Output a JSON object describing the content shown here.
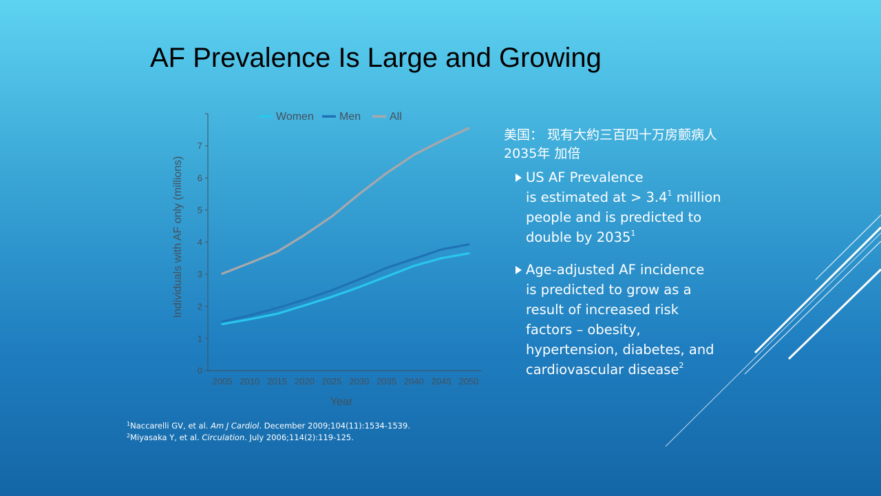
{
  "slide": {
    "title": "AF Prevalence Is Large and Growing"
  },
  "right_panel": {
    "cn_line1": "美国： 现有大約三百四十万房颤病人",
    "cn_line2": "2035年 加倍",
    "bullets": [
      {
        "lines": [
          {
            "text": "US AF Prevalence",
            "sup": ""
          },
          {
            "text": "is estimated at > 3.4",
            "sup": "1",
            "after": " million"
          },
          {
            "text": "people and is predicted to",
            "sup": ""
          },
          {
            "text": "double by 2035",
            "sup": "1"
          }
        ]
      },
      {
        "lines": [
          {
            "text": "Age-adjusted AF incidence",
            "sup": ""
          },
          {
            "text": "is predicted to grow as a",
            "sup": ""
          },
          {
            "text": "result of increased risk",
            "sup": ""
          },
          {
            "text": "factors – obesity,",
            "sup": ""
          },
          {
            "text": "hypertension, diabetes, and",
            "sup": ""
          },
          {
            "text": "cardiovascular disease",
            "sup": "2"
          }
        ]
      }
    ]
  },
  "references": [
    {
      "num": "1",
      "pre": "Naccarelli GV, et al. ",
      "journal": "Am J Cardiol",
      "post": ". December 2009;104(11):1534-1539."
    },
    {
      "num": "2",
      "pre": "Miyasaka Y, et al. ",
      "journal": "Circulation",
      "post": ". July 2006;114(2):119-125."
    }
  ],
  "chart_data": {
    "type": "line",
    "xlabel": "Year",
    "ylabel": "Individuals with AF only (millions)",
    "x": [
      2005,
      2010,
      2015,
      2020,
      2025,
      2030,
      2035,
      2040,
      2045,
      2050
    ],
    "ylim": [
      0,
      8
    ],
    "yticks": [
      0,
      1,
      2,
      3,
      4,
      5,
      6,
      7
    ],
    "legend_position": "top",
    "grid": false,
    "series": [
      {
        "name": "Women",
        "color": "#29c6ee",
        "values": [
          1.45,
          1.6,
          1.77,
          2.03,
          2.3,
          2.6,
          2.93,
          3.26,
          3.5,
          3.65
        ]
      },
      {
        "name": "Men",
        "color": "#1f72b4",
        "values": [
          1.53,
          1.72,
          1.95,
          2.21,
          2.5,
          2.84,
          3.2,
          3.48,
          3.77,
          3.93
        ]
      },
      {
        "name": "All",
        "color": "#a8a8aa",
        "values": [
          3.02,
          3.35,
          3.7,
          4.22,
          4.8,
          5.5,
          6.15,
          6.72,
          7.15,
          7.55
        ]
      }
    ]
  }
}
